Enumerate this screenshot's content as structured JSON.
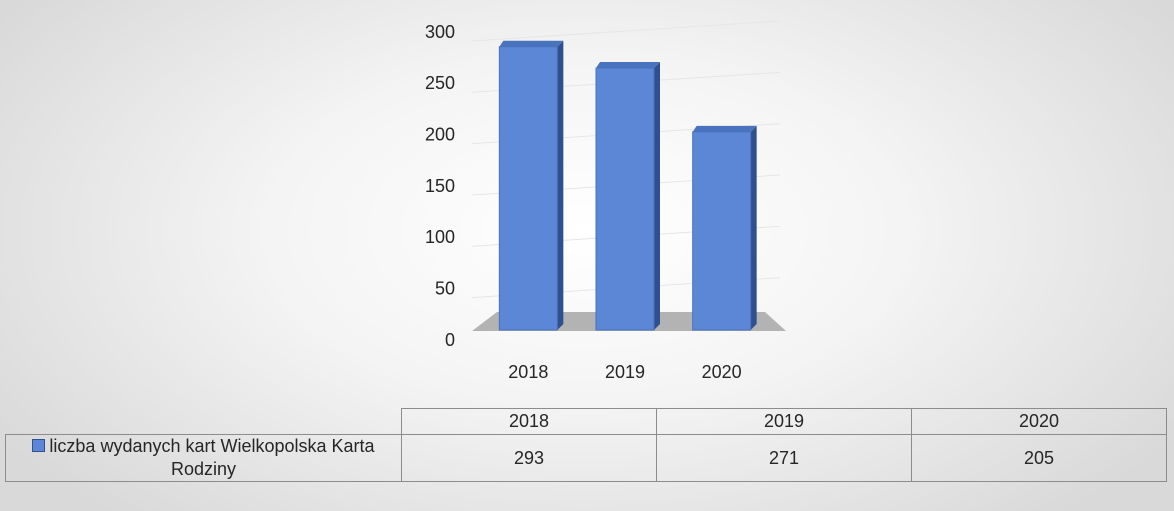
{
  "chart_data": {
    "type": "bar",
    "categories": [
      "2018",
      "2019",
      "2020"
    ],
    "series": [
      {
        "name": "liczba wydanych kart Wielkopolska Karta Rodziny",
        "color": "#5b87d6",
        "values": [
          293,
          271,
          205
        ]
      }
    ],
    "ylim": [
      0,
      300
    ],
    "yticks": [
      0,
      50,
      100,
      150,
      200,
      250,
      300
    ],
    "grid": true
  }
}
